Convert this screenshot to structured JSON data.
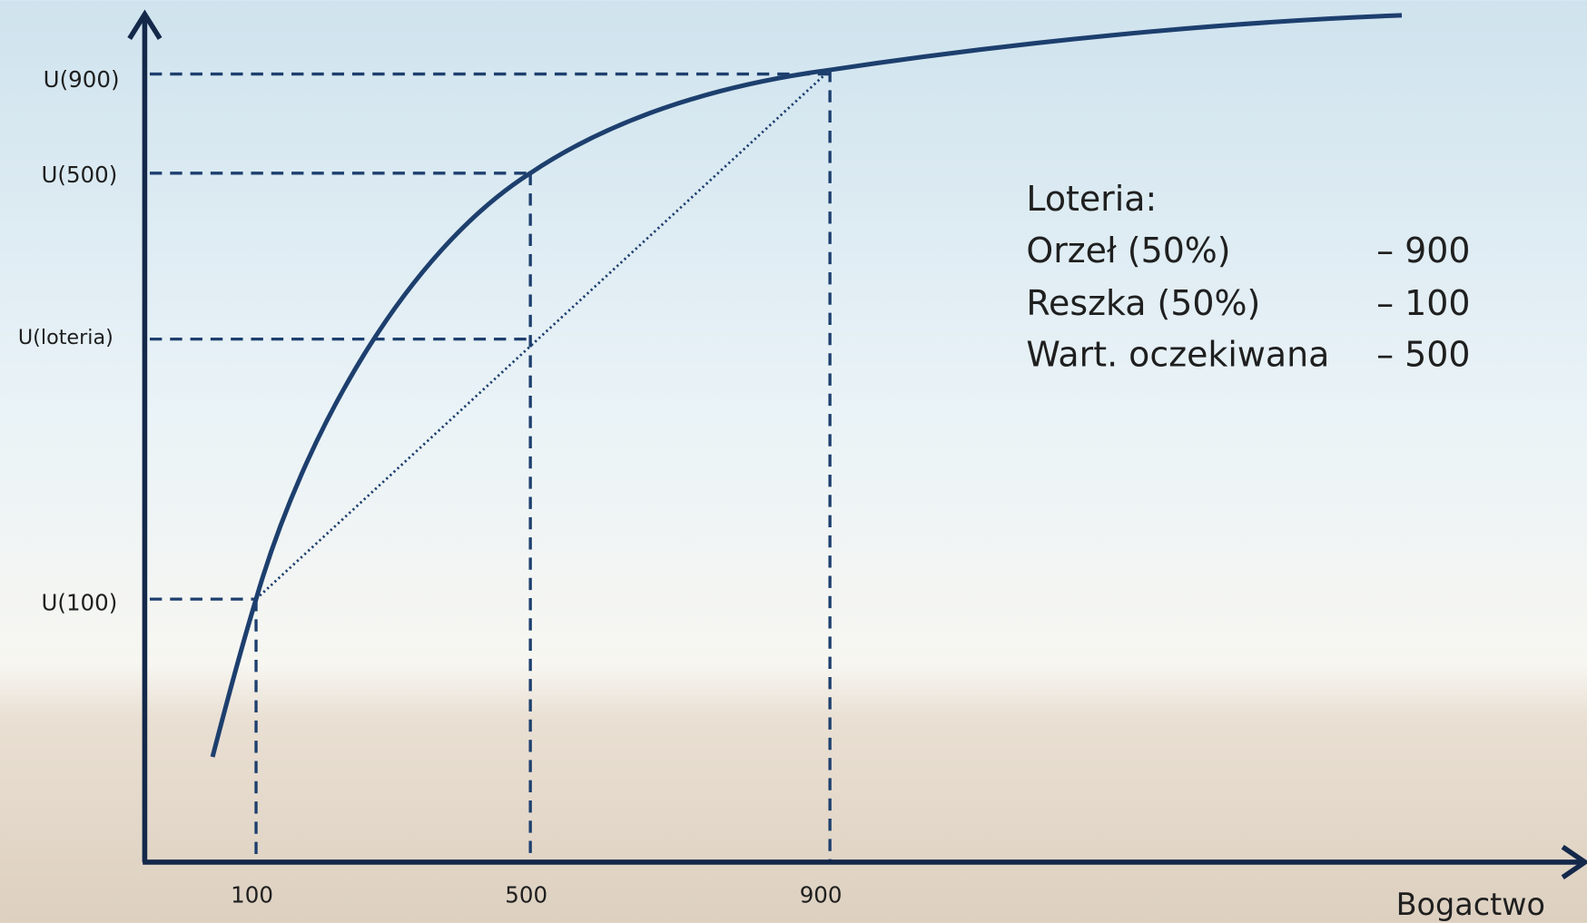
{
  "y_axis_labels": [
    "U(900)",
    "U(500)",
    "U(loteria)",
    "U(100)"
  ],
  "x_axis_labels": [
    "100",
    "500",
    "900"
  ],
  "x_axis_title": "Bogactwo",
  "legend": {
    "title": "Loteria:",
    "rows": [
      [
        "Orzeł (50%)",
        "– 900"
      ],
      [
        "Reszka (50%)",
        "– 100"
      ],
      [
        "Wart. oczekiwana",
        "– 500"
      ]
    ]
  }
}
